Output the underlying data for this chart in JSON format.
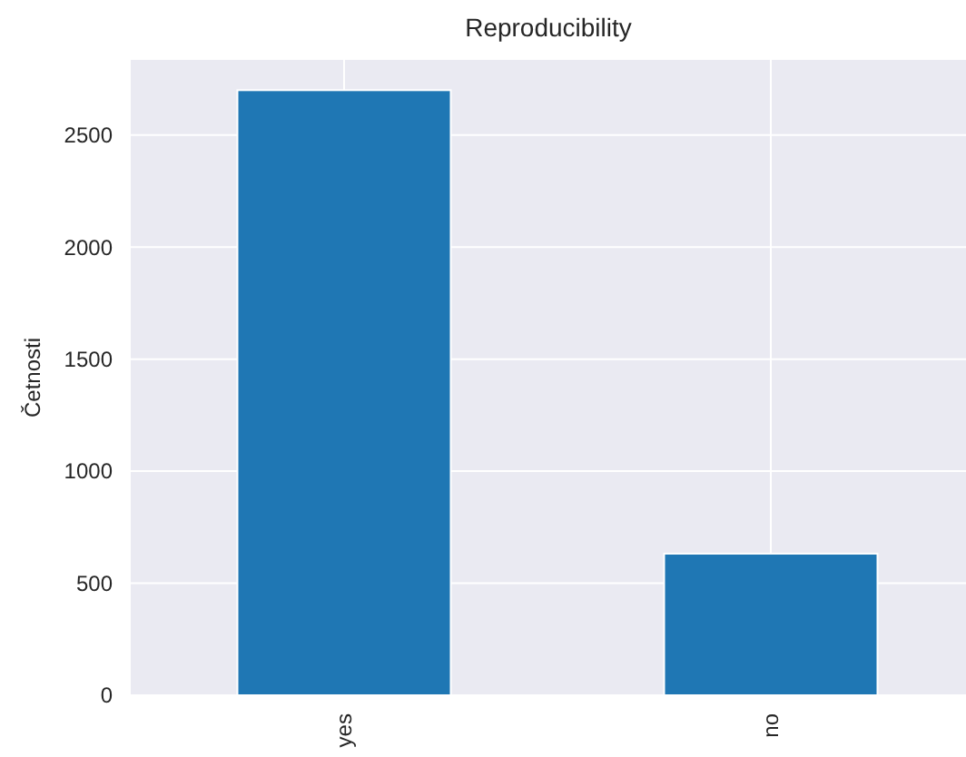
{
  "chart_data": {
    "type": "bar",
    "title": "Reproducibility",
    "ylabel": "Četnosti",
    "categories": [
      "yes",
      "no"
    ],
    "values": [
      2700,
      632
    ],
    "color": "#1f77b4",
    "ylim": [
      0,
      2835
    ],
    "yticks": [
      0,
      500,
      1000,
      1500,
      2000,
      2500
    ],
    "grid": true
  }
}
